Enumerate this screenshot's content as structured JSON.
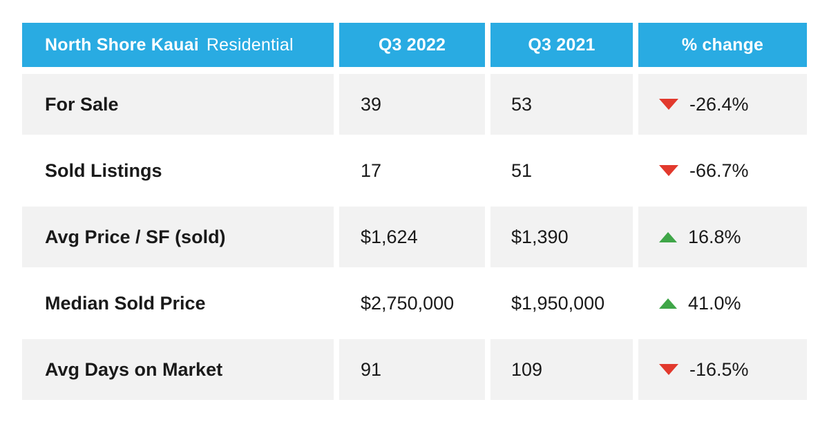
{
  "colors": {
    "header_bg": "#29ABE2",
    "header_text": "#FFFFFF",
    "row_alt_bg": "#F2F2F2",
    "row_text": "#1A1A1A",
    "up": "#3FA648",
    "down": "#E2392D"
  },
  "chart_data": {
    "type": "table",
    "title": "North Shore Kauai Residential",
    "header": {
      "region": "North Shore Kauai",
      "segment": "Residential",
      "col_q3_2022": "Q3 2022",
      "col_q3_2021": "Q3 2021",
      "col_change": "% change"
    },
    "rows": [
      {
        "label": "For Sale",
        "q3_2022": "39",
        "q3_2021": "53",
        "change": "-26.4%",
        "direction": "down",
        "q3_2022_value": 39,
        "q3_2021_value": 53,
        "pct_change_value": -26.4
      },
      {
        "label": "Sold Listings",
        "q3_2022": "17",
        "q3_2021": "51",
        "change": "-66.7%",
        "direction": "down",
        "q3_2022_value": 17,
        "q3_2021_value": 51,
        "pct_change_value": -66.7
      },
      {
        "label": "Avg Price / SF (sold)",
        "q3_2022": "$1,624",
        "q3_2021": "$1,390",
        "change": "16.8%",
        "direction": "up",
        "q3_2022_value": 1624,
        "q3_2021_value": 1390,
        "pct_change_value": 16.8
      },
      {
        "label": "Median Sold Price",
        "q3_2022": "$2,750,000",
        "q3_2021": "$1,950,000",
        "change": "41.0%",
        "direction": "up",
        "q3_2022_value": 2750000,
        "q3_2021_value": 1950000,
        "pct_change_value": 41.0
      },
      {
        "label": "Avg Days on Market",
        "q3_2022": "91",
        "q3_2021": "109",
        "change": "-16.5%",
        "direction": "down",
        "q3_2022_value": 91,
        "q3_2021_value": 109,
        "pct_change_value": -16.5
      }
    ]
  }
}
